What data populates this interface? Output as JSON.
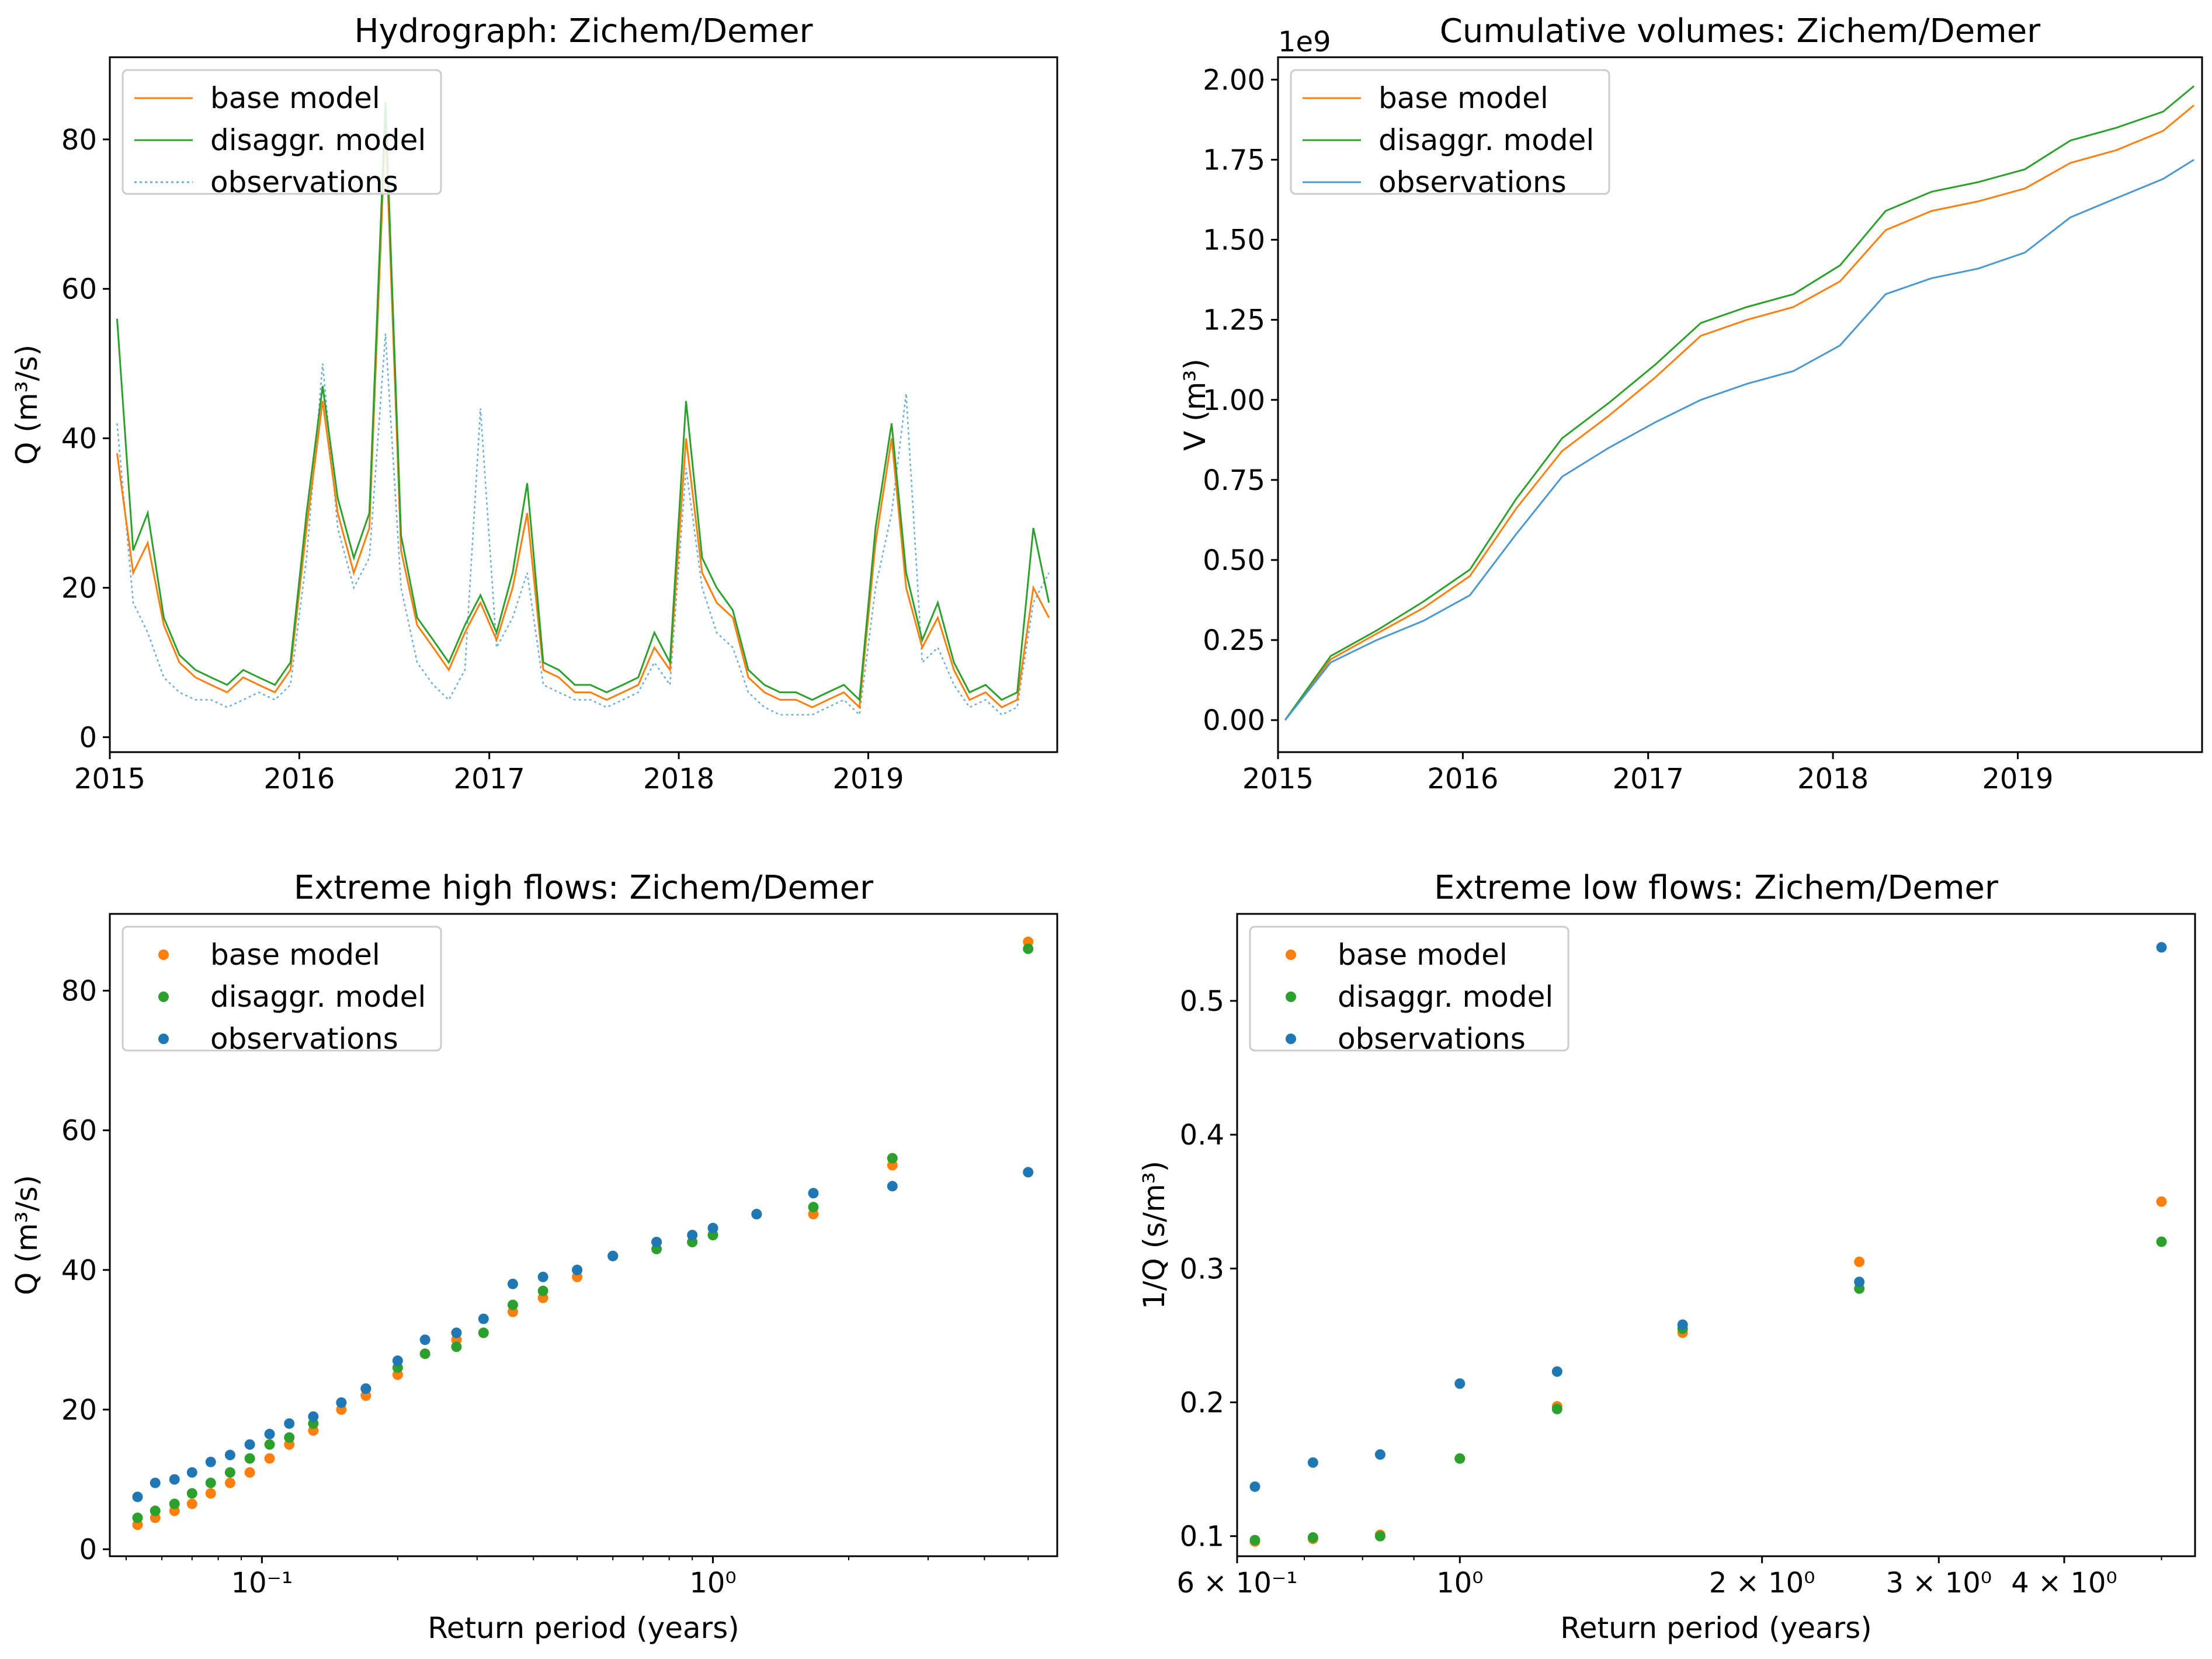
{
  "colors": {
    "base": "#ff7f0e",
    "disagg": "#2ca02c",
    "obs": "#1f77b4"
  },
  "chart_data": [
    {
      "id": "hydrograph",
      "type": "line",
      "title": "Hydrograph: Zichem/Demer",
      "xlabel": "",
      "ylabel": "Q (m³/s)",
      "x_ticks": [
        "2015",
        "2016",
        "2017",
        "2018",
        "2019"
      ],
      "y_ticks": [
        "0",
        "20",
        "40",
        "60",
        "80"
      ],
      "xlim": [
        "2015-01-01",
        "2019-12-31"
      ],
      "ylim": [
        -2,
        91
      ],
      "legend": {
        "placement": "top-left",
        "entries": [
          "base model",
          "disaggr. model",
          "observations"
        ]
      },
      "series": [
        {
          "name": "base model",
          "style": "solid",
          "x": [
            "2015-01",
            "2015-02",
            "2015-03",
            "2015-04",
            "2015-05",
            "2015-06",
            "2015-07",
            "2015-08",
            "2015-09",
            "2015-10",
            "2015-11",
            "2015-12",
            "2016-01",
            "2016-02",
            "2016-03",
            "2016-04",
            "2016-05",
            "2016-06",
            "2016-07",
            "2016-08",
            "2016-09",
            "2016-10",
            "2016-11",
            "2016-12",
            "2017-01",
            "2017-02",
            "2017-03",
            "2017-04",
            "2017-05",
            "2017-06",
            "2017-07",
            "2017-08",
            "2017-09",
            "2017-10",
            "2017-11",
            "2017-12",
            "2018-01",
            "2018-02",
            "2018-03",
            "2018-04",
            "2018-05",
            "2018-06",
            "2018-07",
            "2018-08",
            "2018-09",
            "2018-10",
            "2018-11",
            "2018-12",
            "2019-01",
            "2019-02",
            "2019-03",
            "2019-04",
            "2019-05",
            "2019-06",
            "2019-07",
            "2019-08",
            "2019-09",
            "2019-10",
            "2019-11",
            "2019-12"
          ],
          "values": [
            38,
            22,
            26,
            15,
            10,
            8,
            7,
            6,
            8,
            7,
            6,
            9,
            28,
            45,
            30,
            22,
            28,
            82,
            25,
            15,
            12,
            9,
            14,
            18,
            13,
            20,
            30,
            9,
            8,
            6,
            6,
            5,
            6,
            7,
            12,
            9,
            40,
            22,
            18,
            16,
            8,
            6,
            5,
            5,
            4,
            5,
            6,
            4,
            26,
            40,
            20,
            12,
            16,
            9,
            5,
            6,
            4,
            5,
            20,
            16
          ]
        },
        {
          "name": "disaggr. model",
          "style": "solid",
          "x": [
            "2015-01",
            "2015-02",
            "2015-03",
            "2015-04",
            "2015-05",
            "2015-06",
            "2015-07",
            "2015-08",
            "2015-09",
            "2015-10",
            "2015-11",
            "2015-12",
            "2016-01",
            "2016-02",
            "2016-03",
            "2016-04",
            "2016-05",
            "2016-06",
            "2016-07",
            "2016-08",
            "2016-09",
            "2016-10",
            "2016-11",
            "2016-12",
            "2017-01",
            "2017-02",
            "2017-03",
            "2017-04",
            "2017-05",
            "2017-06",
            "2017-07",
            "2017-08",
            "2017-09",
            "2017-10",
            "2017-11",
            "2017-12",
            "2018-01",
            "2018-02",
            "2018-03",
            "2018-04",
            "2018-05",
            "2018-06",
            "2018-07",
            "2018-08",
            "2018-09",
            "2018-10",
            "2018-11",
            "2018-12",
            "2019-01",
            "2019-02",
            "2019-03",
            "2019-04",
            "2019-05",
            "2019-06",
            "2019-07",
            "2019-08",
            "2019-09",
            "2019-10",
            "2019-11",
            "2019-12"
          ],
          "values": [
            56,
            25,
            30,
            16,
            11,
            9,
            8,
            7,
            9,
            8,
            7,
            10,
            30,
            47,
            32,
            24,
            30,
            85,
            27,
            16,
            13,
            10,
            15,
            19,
            14,
            22,
            34,
            10,
            9,
            7,
            7,
            6,
            7,
            8,
            14,
            10,
            45,
            24,
            20,
            17,
            9,
            7,
            6,
            6,
            5,
            6,
            7,
            5,
            28,
            42,
            22,
            13,
            18,
            10,
            6,
            7,
            5,
            6,
            28,
            18
          ]
        },
        {
          "name": "observations",
          "style": "dotted",
          "x": [
            "2015-01",
            "2015-02",
            "2015-03",
            "2015-04",
            "2015-05",
            "2015-06",
            "2015-07",
            "2015-08",
            "2015-09",
            "2015-10",
            "2015-11",
            "2015-12",
            "2016-01",
            "2016-02",
            "2016-03",
            "2016-04",
            "2016-05",
            "2016-06",
            "2016-07",
            "2016-08",
            "2016-09",
            "2016-10",
            "2016-11",
            "2016-12",
            "2017-01",
            "2017-02",
            "2017-03",
            "2017-04",
            "2017-05",
            "2017-06",
            "2017-07",
            "2017-08",
            "2017-09",
            "2017-10",
            "2017-11",
            "2017-12",
            "2018-01",
            "2018-02",
            "2018-03",
            "2018-04",
            "2018-05",
            "2018-06",
            "2018-07",
            "2018-08",
            "2018-09",
            "2018-10",
            "2018-11",
            "2018-12",
            "2019-01",
            "2019-02",
            "2019-03",
            "2019-04",
            "2019-05",
            "2019-06",
            "2019-07",
            "2019-08",
            "2019-09",
            "2019-10",
            "2019-11",
            "2019-12"
          ],
          "values": [
            42,
            18,
            14,
            8,
            6,
            5,
            5,
            4,
            5,
            6,
            5,
            7,
            24,
            50,
            28,
            20,
            24,
            54,
            20,
            10,
            7,
            5,
            9,
            44,
            12,
            16,
            22,
            7,
            6,
            5,
            5,
            4,
            5,
            6,
            10,
            7,
            36,
            20,
            14,
            12,
            6,
            4,
            3,
            3,
            3,
            4,
            5,
            3,
            20,
            30,
            46,
            10,
            12,
            7,
            4,
            5,
            3,
            4,
            18,
            22
          ]
        }
      ]
    },
    {
      "id": "cumulative",
      "type": "line",
      "title": "Cumulative volumes: Zichem/Demer",
      "xlabel": "",
      "ylabel": "V (m³)",
      "offset_text": "1e9",
      "x_ticks": [
        "2015",
        "2016",
        "2017",
        "2018",
        "2019"
      ],
      "y_ticks": [
        "0.00",
        "0.25",
        "0.50",
        "0.75",
        "1.00",
        "1.25",
        "1.50",
        "1.75",
        "2.00"
      ],
      "xlim": [
        "2015-01-01",
        "2019-12-31"
      ],
      "ylim": [
        -0.1,
        2.07
      ],
      "legend": {
        "placement": "top-left",
        "entries": [
          "base model",
          "disaggr. model",
          "observations"
        ]
      },
      "series": [
        {
          "name": "base model",
          "x": [
            "2015-01",
            "2015-04",
            "2015-07",
            "2015-10",
            "2016-01",
            "2016-04",
            "2016-07",
            "2016-10",
            "2017-01",
            "2017-04",
            "2017-07",
            "2017-10",
            "2018-01",
            "2018-04",
            "2018-07",
            "2018-10",
            "2019-01",
            "2019-04",
            "2019-07",
            "2019-10",
            "2019-12"
          ],
          "values": [
            0.0,
            0.19,
            0.27,
            0.35,
            0.45,
            0.66,
            0.84,
            0.95,
            1.07,
            1.2,
            1.25,
            1.29,
            1.37,
            1.53,
            1.59,
            1.62,
            1.66,
            1.74,
            1.78,
            1.84,
            1.92
          ]
        },
        {
          "name": "disaggr. model",
          "x": [
            "2015-01",
            "2015-04",
            "2015-07",
            "2015-10",
            "2016-01",
            "2016-04",
            "2016-07",
            "2016-10",
            "2017-01",
            "2017-04",
            "2017-07",
            "2017-10",
            "2018-01",
            "2018-04",
            "2018-07",
            "2018-10",
            "2019-01",
            "2019-04",
            "2019-07",
            "2019-10",
            "2019-12"
          ],
          "values": [
            0.0,
            0.2,
            0.28,
            0.37,
            0.47,
            0.69,
            0.88,
            0.99,
            1.11,
            1.24,
            1.29,
            1.33,
            1.42,
            1.59,
            1.65,
            1.68,
            1.72,
            1.81,
            1.85,
            1.9,
            1.98
          ]
        },
        {
          "name": "observations",
          "x": [
            "2015-01",
            "2015-04",
            "2015-07",
            "2015-10",
            "2016-01",
            "2016-04",
            "2016-07",
            "2016-10",
            "2017-01",
            "2017-04",
            "2017-07",
            "2017-10",
            "2018-01",
            "2018-04",
            "2018-07",
            "2018-10",
            "2019-01",
            "2019-04",
            "2019-07",
            "2019-10",
            "2019-12"
          ],
          "values": [
            0.0,
            0.18,
            0.25,
            0.31,
            0.39,
            0.58,
            0.76,
            0.85,
            0.93,
            1.0,
            1.05,
            1.09,
            1.17,
            1.33,
            1.38,
            1.41,
            1.46,
            1.57,
            1.63,
            1.69,
            1.75
          ]
        }
      ]
    },
    {
      "id": "highflows",
      "type": "scatter",
      "title": "Extreme high flows: Zichem/Demer",
      "xlabel": "Return period (years)",
      "ylabel": "Q (m³/s)",
      "xscale": "log",
      "xlim": [
        0.046,
        5.8
      ],
      "ylim": [
        -1,
        91
      ],
      "x_ticks": [
        {
          "value": 0.1,
          "label": "10⁻¹"
        },
        {
          "value": 1,
          "label": "10⁰"
        }
      ],
      "y_ticks": [
        "0",
        "20",
        "40",
        "60",
        "80"
      ],
      "legend": {
        "placement": "top-left",
        "entries": [
          "base model",
          "disaggr. model",
          "observations"
        ]
      },
      "series": [
        {
          "name": "base model",
          "x": [
            0.053,
            0.058,
            0.064,
            0.07,
            0.077,
            0.085,
            0.094,
            0.104,
            0.115,
            0.13,
            0.15,
            0.17,
            0.2,
            0.23,
            0.27,
            0.31,
            0.36,
            0.42,
            0.5,
            0.6,
            0.75,
            0.9,
            1.0,
            1.25,
            1.67,
            2.5,
            5.0
          ],
          "values": [
            3.5,
            4.5,
            5.5,
            6.5,
            8,
            9.5,
            11,
            13,
            15,
            17,
            20,
            22,
            25,
            28,
            30,
            31,
            34,
            36,
            39,
            42,
            44,
            44,
            45,
            48,
            48,
            55,
            87
          ]
        },
        {
          "name": "disaggr. model",
          "x": [
            0.053,
            0.058,
            0.064,
            0.07,
            0.077,
            0.085,
            0.094,
            0.104,
            0.115,
            0.13,
            0.15,
            0.17,
            0.2,
            0.23,
            0.27,
            0.31,
            0.36,
            0.42,
            0.5,
            0.6,
            0.75,
            0.9,
            1.0,
            1.25,
            1.67,
            2.5,
            5.0
          ],
          "values": [
            4.5,
            5.5,
            6.5,
            8,
            9.5,
            11,
            13,
            15,
            16,
            18,
            21,
            23,
            26,
            28,
            29,
            31,
            35,
            37,
            40,
            42,
            43,
            44,
            45,
            48,
            49,
            56,
            86
          ]
        },
        {
          "name": "observations",
          "x": [
            0.053,
            0.058,
            0.064,
            0.07,
            0.077,
            0.085,
            0.094,
            0.104,
            0.115,
            0.13,
            0.15,
            0.17,
            0.2,
            0.23,
            0.27,
            0.31,
            0.36,
            0.42,
            0.5,
            0.6,
            0.75,
            0.9,
            1.0,
            1.25,
            1.67,
            2.5,
            5.0
          ],
          "values": [
            7.5,
            9.5,
            10,
            11,
            12.5,
            13.5,
            15,
            16.5,
            18,
            19,
            21,
            23,
            27,
            30,
            31,
            33,
            38,
            39,
            40,
            42,
            44,
            45,
            46,
            48,
            51,
            52,
            54
          ]
        }
      ]
    },
    {
      "id": "lowflows",
      "type": "scatter",
      "title": "Extreme low flows: Zichem/Demer",
      "xlabel": "Return period (years)",
      "ylabel": "1/Q (s/m³)",
      "xscale": "log",
      "xlim": [
        0.6,
        5.4
      ],
      "ylim": [
        0.085,
        0.565
      ],
      "x_ticks": [
        {
          "value": 0.6,
          "label": "6 × 10⁻¹"
        },
        {
          "value": 1,
          "label": "10⁰"
        },
        {
          "value": 2,
          "label": "2 × 10⁰"
        },
        {
          "value": 3,
          "label": "3 × 10⁰"
        },
        {
          "value": 4,
          "label": "4 × 10⁰"
        }
      ],
      "y_ticks": [
        "0.1",
        "0.2",
        "0.3",
        "0.4",
        "0.5"
      ],
      "legend": {
        "placement": "top-left",
        "entries": [
          "base model",
          "disaggr. model",
          "observations"
        ]
      },
      "series": [
        {
          "name": "base model",
          "x": [
            0.625,
            0.714,
            0.833,
            1.0,
            1.25,
            1.667,
            2.5,
            5.0
          ],
          "values": [
            0.096,
            0.098,
            0.101,
            0.158,
            0.197,
            0.252,
            0.305,
            0.35
          ]
        },
        {
          "name": "disaggr. model",
          "x": [
            0.625,
            0.714,
            0.833,
            1.0,
            1.25,
            1.667,
            2.5,
            5.0
          ],
          "values": [
            0.097,
            0.099,
            0.1,
            0.158,
            0.195,
            0.255,
            0.285,
            0.32
          ]
        },
        {
          "name": "observations",
          "x": [
            0.625,
            0.714,
            0.833,
            1.0,
            1.25,
            1.667,
            2.5,
            5.0
          ],
          "values": [
            0.137,
            0.155,
            0.161,
            0.214,
            0.223,
            0.258,
            0.29,
            0.54
          ]
        }
      ]
    }
  ]
}
